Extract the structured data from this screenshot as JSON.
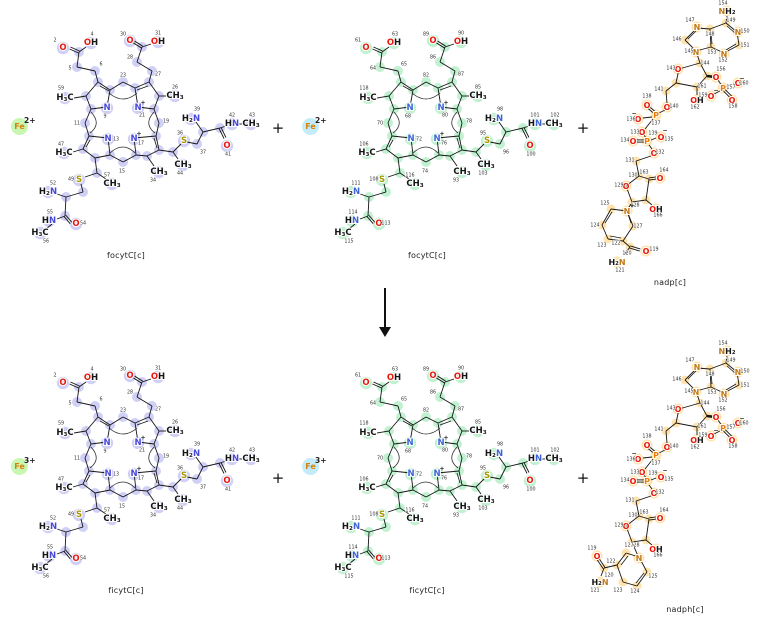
{
  "reaction": {
    "plus_sign": "+",
    "arrow_direction": "down",
    "reactant_names": [
      "focytC[c]",
      "focytC[c]",
      "nadp[c]"
    ],
    "product_names": [
      "ficytC[c]",
      "ficytC[c]",
      "nadph[c]"
    ]
  },
  "ions": [
    {
      "symbol": "Fe",
      "charge": "2+",
      "circle_color": "#c9f7b2",
      "symbol_color": "#d4820a",
      "row": "reactants"
    },
    {
      "symbol": "Fe",
      "charge": "2+",
      "circle_color": "#c3ebfa",
      "symbol_color": "#d4820a",
      "row": "reactants"
    },
    {
      "symbol": "Fe",
      "charge": "3+",
      "circle_color": "#c9f7b2",
      "symbol_color": "#d4820a",
      "row": "products"
    },
    {
      "symbol": "Fe",
      "charge": "3+",
      "circle_color": "#c3ebfa",
      "symbol_color": "#d4820a",
      "row": "products"
    }
  ],
  "molecules": [
    {
      "label": "focytC[c]",
      "kind": "heme-porphyrin",
      "colors": {
        "highlight": "#cdcdf6",
        "nitrogen": "#4747da",
        "oxygen": "#e8160c",
        "sulfur": "#a89600",
        "phosphorus": "#e87d0d",
        "bond": "#161616",
        "number": "#333333"
      },
      "groups": {
        "o_left": "O",
        "oh_left": "OH",
        "o_right": "O",
        "oh_right": "OH",
        "h3c_nw": "H3C",
        "ch3_ne": "CH3",
        "h3c_sw": "H3C",
        "ch3_se_bottom": "CH3",
        "n_nw": "N",
        "n_ne": "N",
        "n_sw": "N",
        "n_se": "N",
        "s_se": "S",
        "h2n_se": "H2N",
        "hn_se": "HN",
        "ch3_se_end": "CH3",
        "o_se": "O",
        "ch3_se_branch": "CH3",
        "s_sw": "S",
        "h2n_sw": "H2N",
        "hn_sw": "HN",
        "h3c_sw_end": "H3C",
        "o_sw": "O",
        "ch3_sw_branch": "CH3",
        "n_charge": "+"
      },
      "atom_numbers": {
        "o_left": "2",
        "oh_left": "4",
        "c5": "5",
        "c6": "6",
        "c23": "23",
        "n_nw": "9",
        "n_ne": "21",
        "n_sw": "13",
        "n_se": "17",
        "c11": "11",
        "c19": "19",
        "c15": "15",
        "h3c_nw": "59",
        "ch3_ne": "26",
        "h3c_sw": "47",
        "ch3_se_bottom": "34",
        "c27": "27",
        "c28": "28",
        "o_right": "30",
        "oh_right": "31",
        "s_se": "36",
        "c37": "37",
        "h2n_se": "39",
        "hn_se": "42",
        "ch3_se_end": "43",
        "o_se": "41",
        "ch3_se_branch": "44",
        "s_sw": "49",
        "h2n_sw": "52",
        "hn_sw": "55",
        "h3c_sw_end": "56",
        "o_sw": "54",
        "ch3_sw_branch": "57"
      }
    },
    {
      "label": "focytC[c]",
      "kind": "heme-porphyrin",
      "colors": {
        "highlight": "#bff0d0",
        "nitrogen": "#3c64d6",
        "oxygen": "#e8160c",
        "sulfur": "#a89600",
        "phosphorus": "#e87d0d",
        "bond": "#161616",
        "number": "#333333"
      },
      "groups": {
        "o_left": "O",
        "oh_left": "OH",
        "o_right": "O",
        "oh_right": "OH",
        "h3c_nw": "H3C",
        "ch3_ne": "CH3",
        "h3c_sw": "H3C",
        "ch3_se_bottom": "CH3",
        "n_nw": "N",
        "n_ne": "N",
        "n_sw": "N",
        "n_se": "N",
        "s_se": "S",
        "h2n_se": "H2N",
        "hn_se": "HN",
        "ch3_se_end": "CH3",
        "o_se": "O",
        "ch3_se_branch": "CH3",
        "s_sw": "S",
        "h2n_sw": "H2N",
        "hn_sw": "HN",
        "h3c_sw_end": "H3C",
        "o_sw": "O",
        "ch3_sw_branch": "CH3",
        "n_charge": "+"
      },
      "atom_numbers": {
        "o_left": "61",
        "oh_left": "63",
        "c5": "64",
        "c6": "65",
        "c23": "82",
        "n_nw": "68",
        "n_ne": "80",
        "n_sw": "72",
        "n_se": "76",
        "c11": "70",
        "c19": "78",
        "c15": "74",
        "h3c_nw": "118",
        "ch3_ne": "85",
        "h3c_sw": "106",
        "ch3_se_bottom": "93",
        "c27": "87",
        "c28": "86",
        "o_right": "89",
        "oh_right": "90",
        "s_se": "95",
        "c37": "96",
        "h2n_se": "98",
        "hn_se": "101",
        "ch3_se_end": "102",
        "o_se": "100",
        "ch3_se_branch": "103",
        "s_sw": "108",
        "h2n_sw": "111",
        "hn_sw": "114",
        "h3c_sw_end": "115",
        "o_sw": "113",
        "ch3_sw_branch": "116"
      }
    },
    {
      "label": "nadp[c]",
      "kind": "nadp",
      "colors": {
        "highlight": "#ffe2a9",
        "nitrogen": "#c17817",
        "oxygen": "#e8160c",
        "sulfur": "#a89600",
        "phosphorus": "#e87d0d",
        "bond": "#161616",
        "number": "#333333"
      },
      "groups": {
        "nh2": "NH2",
        "n147": "N",
        "n145": "N",
        "n150": "N",
        "n152": "N",
        "o143": "O",
        "o156": "O",
        "p157": "P",
        "o158": "O",
        "o159": "O",
        "o160": "O",
        "oh162": "OH",
        "o138": "O",
        "p137": "P",
        "o136": "O",
        "o140": "O",
        "o133": "O",
        "p139": "P",
        "o134": "O",
        "o135": "O",
        "o132": "O",
        "o129": "O",
        "o164": "O",
        "oh166": "OH",
        "n_ring": "N",
        "o119": "O",
        "h2n121": "H2N",
        "minus": "−",
        "n_plus": "+"
      },
      "atom_numbers": {
        "nh2": "154",
        "n147": "147",
        "c146": "146",
        "n145": "145",
        "c148": "148",
        "c149": "149",
        "n150": "150",
        "c151": "151",
        "n152": "152",
        "c153": "153",
        "c144": "144",
        "o143": "143",
        "c141": "141",
        "o156": "156",
        "p157": "157",
        "o158": "158",
        "o159": "159",
        "o160": "160",
        "c161": "161",
        "oh162": "162",
        "o138": "138",
        "p137": "137",
        "o136": "136",
        "o140": "140",
        "o133": "133",
        "p139": "139",
        "o134": "134",
        "o135": "135",
        "o132": "132",
        "c131": "131",
        "c130": "130",
        "o129": "129",
        "c128": "128",
        "c163": "163",
        "o164": "164",
        "oh166": "166",
        "c125": "125",
        "c124": "124",
        "c123": "123",
        "c122": "122",
        "c127": "127",
        "c120": "120",
        "o119": "119",
        "h2n121": "121"
      }
    },
    {
      "label": "ficytC[c]",
      "kind": "heme-porphyrin",
      "colors": {
        "highlight": "#cdcdf6",
        "nitrogen": "#4747da",
        "oxygen": "#e8160c",
        "sulfur": "#a89600",
        "phosphorus": "#e87d0d",
        "bond": "#161616",
        "number": "#333333"
      },
      "groups": {
        "o_left": "O",
        "oh_left": "OH",
        "o_right": "O",
        "oh_right": "OH",
        "h3c_nw": "H3C",
        "ch3_ne": "CH3",
        "h3c_sw": "H3C",
        "ch3_se_bottom": "CH3",
        "n_nw": "N",
        "n_ne": "N",
        "n_sw": "N",
        "n_se": "N",
        "s_se": "S",
        "h2n_se": "H2N",
        "hn_se": "HN",
        "ch3_se_end": "CH3",
        "o_se": "O",
        "ch3_se_branch": "CH3",
        "s_sw": "S",
        "h2n_sw": "H2N",
        "hn_sw": "HN",
        "h3c_sw_end": "H3C",
        "o_sw": "O",
        "ch3_sw_branch": "CH3",
        "n_charge": "+"
      },
      "atom_numbers": {
        "o_left": "2",
        "oh_left": "4",
        "c5": "5",
        "c6": "6",
        "c23": "23",
        "n_nw": "9",
        "n_ne": "21",
        "n_sw": "13",
        "n_se": "17",
        "c11": "11",
        "c19": "19",
        "c15": "15",
        "h3c_nw": "59",
        "ch3_ne": "26",
        "h3c_sw": "47",
        "ch3_se_bottom": "34",
        "c27": "27",
        "c28": "28",
        "o_right": "30",
        "oh_right": "31",
        "s_se": "36",
        "c37": "37",
        "h2n_se": "39",
        "hn_se": "42",
        "ch3_se_end": "43",
        "o_se": "41",
        "ch3_se_branch": "44",
        "s_sw": "49",
        "h2n_sw": "52",
        "hn_sw": "55",
        "h3c_sw_end": "56",
        "o_sw": "54",
        "ch3_sw_branch": "57"
      }
    },
    {
      "label": "ficytC[c]",
      "kind": "heme-porphyrin",
      "colors": {
        "highlight": "#bff0d0",
        "nitrogen": "#3c64d6",
        "oxygen": "#e8160c",
        "sulfur": "#a89600",
        "phosphorus": "#e87d0d",
        "bond": "#161616",
        "number": "#333333"
      },
      "groups": {
        "o_left": "O",
        "oh_left": "OH",
        "o_right": "O",
        "oh_right": "OH",
        "h3c_nw": "H3C",
        "ch3_ne": "CH3",
        "h3c_sw": "H3C",
        "ch3_se_bottom": "CH3",
        "n_nw": "N",
        "n_ne": "N",
        "n_sw": "N",
        "n_se": "N",
        "s_se": "S",
        "h2n_se": "H2N",
        "hn_se": "HN",
        "ch3_se_end": "CH3",
        "o_se": "O",
        "ch3_se_branch": "CH3",
        "s_sw": "S",
        "h2n_sw": "H2N",
        "hn_sw": "HN",
        "h3c_sw_end": "H3C",
        "o_sw": "O",
        "ch3_sw_branch": "CH3",
        "n_charge": "+"
      },
      "atom_numbers": {
        "o_left": "61",
        "oh_left": "63",
        "c5": "64",
        "c6": "65",
        "c23": "82",
        "n_nw": "68",
        "n_ne": "80",
        "n_sw": "72",
        "n_se": "76",
        "c11": "70",
        "c19": "78",
        "c15": "74",
        "h3c_nw": "118",
        "ch3_ne": "85",
        "h3c_sw": "106",
        "ch3_se_bottom": "93",
        "c27": "87",
        "c28": "86",
        "o_right": "89",
        "oh_right": "90",
        "s_se": "95",
        "c37": "96",
        "h2n_se": "98",
        "hn_se": "101",
        "ch3_se_end": "102",
        "o_se": "100",
        "ch3_se_branch": "103",
        "s_sw": "108",
        "h2n_sw": "111",
        "hn_sw": "114",
        "h3c_sw_end": "115",
        "o_sw": "113",
        "ch3_sw_branch": "116"
      }
    },
    {
      "label": "nadph[c]",
      "kind": "nadph",
      "colors": {
        "highlight": "#ffe2a9",
        "nitrogen": "#c17817",
        "oxygen": "#e8160c",
        "sulfur": "#a89600",
        "phosphorus": "#e87d0d",
        "bond": "#161616",
        "number": "#333333"
      },
      "groups": {
        "nh2": "NH2",
        "n147": "N",
        "n145": "N",
        "n150": "N",
        "n152": "N",
        "o143": "O",
        "o156": "O",
        "p157": "P",
        "o158": "O",
        "o159": "O",
        "o160": "O",
        "oh162": "OH",
        "o138": "O",
        "p137": "P",
        "o136": "O",
        "o140": "O",
        "o133": "O",
        "p139": "P",
        "o134": "O",
        "o135": "O",
        "o132": "O",
        "o129": "O",
        "o164": "O",
        "oh166": "OH",
        "n_ring": "N",
        "o119": "O",
        "h2n121": "H2N",
        "minus": "−"
      },
      "atom_numbers": {
        "nh2": "154",
        "n147": "147",
        "c146": "146",
        "n145": "145",
        "c148": "148",
        "c149": "149",
        "n150": "150",
        "c151": "151",
        "n152": "152",
        "c153": "153",
        "c144": "144",
        "o143": "143",
        "c141": "141",
        "o156": "156",
        "p157": "157",
        "o158": "158",
        "o159": "159",
        "o160": "160",
        "c161": "161",
        "oh162": "162",
        "o138": "138",
        "p137": "137",
        "o136": "136",
        "o140": "140",
        "o133": "133",
        "p139": "139",
        "o134": "134",
        "o135": "135",
        "o132": "132",
        "c131": "131",
        "c130": "130",
        "o129": "129",
        "c128": "128",
        "c163": "163",
        "o164": "164",
        "oh166": "166",
        "c125": "125",
        "c124": "124",
        "c123": "123",
        "c122": "122",
        "c127": "127",
        "c120": "120",
        "o119": "119",
        "h2n121": "121"
      }
    }
  ]
}
